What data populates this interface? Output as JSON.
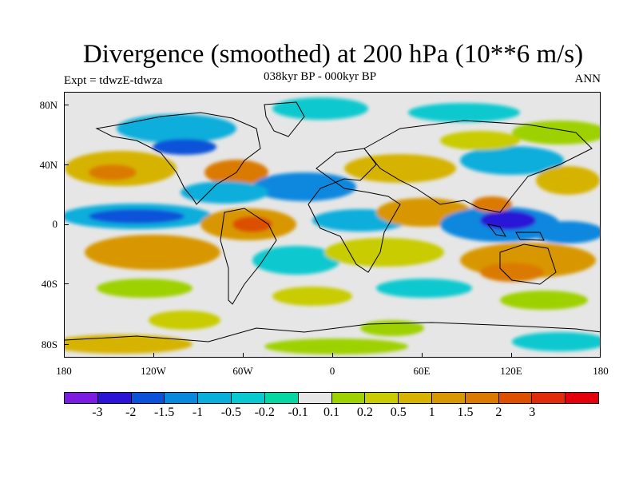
{
  "title": "Divergence (smoothed) at 200 hPa (10**6 m/s)",
  "subtitle": "038kyr BP - 000kyr BP",
  "expt": "Expt = tdwzE-tdwza",
  "season": "ANN",
  "y_ticks": [
    "80N",
    "40N",
    "0",
    "40S",
    "80S"
  ],
  "x_ticks": [
    "180",
    "120W",
    "60W",
    "0",
    "60E",
    "120E",
    "180"
  ],
  "colorbar": {
    "colors": [
      "#7a1de0",
      "#2b14d6",
      "#0b52d9",
      "#0a88de",
      "#09aedb",
      "#08c9cf",
      "#06d6a2",
      "#e6e6e6",
      "#9ed100",
      "#c8cc00",
      "#d6b300",
      "#d89700",
      "#db7a00",
      "#dc5000",
      "#e02c0a",
      "#e3000c"
    ],
    "labels": [
      "-3",
      "-2",
      "-1.5",
      "-1",
      "-0.5",
      "-0.2",
      "-0.1",
      "0.1",
      "0.2",
      "0.5",
      "1",
      "1.5",
      "2",
      "3"
    ]
  }
}
